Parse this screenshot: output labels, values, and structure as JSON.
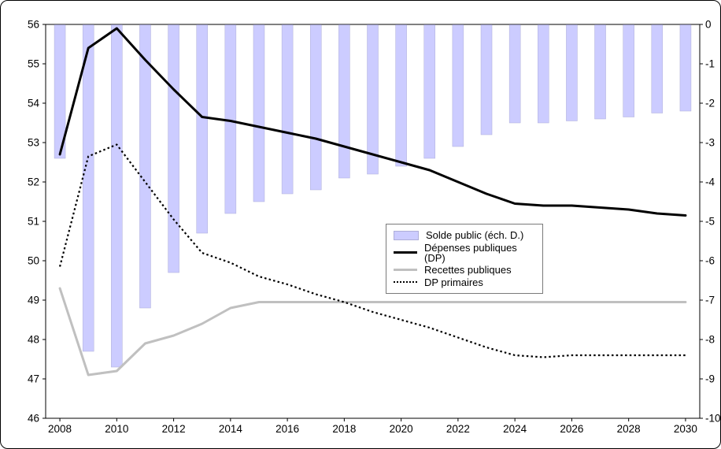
{
  "figure": {
    "background": "#FFFFFF",
    "frame_border_color": "#000000",
    "plot_border_color": "#000000",
    "legend_border_color": "#7A7A7A"
  },
  "chart_data": {
    "type": "combo-bar-line",
    "title": "",
    "xlabel": "",
    "ylabel_left": "",
    "ylabel_right": "",
    "grid": false,
    "legend_position": "inside-center-right",
    "years": [
      2008,
      2009,
      2010,
      2011,
      2012,
      2013,
      2014,
      2015,
      2016,
      2017,
      2018,
      2019,
      2020,
      2021,
      2022,
      2023,
      2024,
      2025,
      2026,
      2027,
      2028,
      2029,
      2030
    ],
    "x_tick_labels": [
      "2008",
      "2010",
      "2012",
      "2014",
      "2016",
      "2018",
      "2020",
      "2022",
      "2024",
      "2026",
      "2028",
      "2030"
    ],
    "x_tick_step": 2,
    "left_axis": {
      "min": 46,
      "max": 56,
      "step": 1,
      "tick_labels": [
        "56",
        "55",
        "54",
        "53",
        "52",
        "51",
        "50",
        "49",
        "48",
        "47",
        "46"
      ]
    },
    "right_axis": {
      "min": -10,
      "max": 0,
      "step": 1,
      "tick_labels": [
        "0",
        "-1",
        "-2",
        "-3",
        "-4",
        "-5",
        "-6",
        "-7",
        "-8",
        "-9",
        "-10"
      ]
    },
    "series": [
      {
        "name": "Solde public (éch. D.)",
        "type": "bar",
        "axis": "right",
        "color": "#CCCCFF",
        "border_color": "#AEAED8",
        "values": [
          -3.4,
          -8.3,
          -8.7,
          -7.2,
          -6.3,
          -5.3,
          -4.8,
          -4.5,
          -4.3,
          -4.2,
          -3.9,
          -3.8,
          -3.6,
          -3.4,
          -3.1,
          -2.8,
          -2.5,
          -2.5,
          -2.45,
          -2.4,
          -2.35,
          -2.25,
          -2.2
        ]
      },
      {
        "name": "Dépenses publiques (DP)",
        "type": "line",
        "axis": "left",
        "style": "solid",
        "color": "#000000",
        "values": [
          52.7,
          55.4,
          55.9,
          55.1,
          54.35,
          53.65,
          53.55,
          53.4,
          53.25,
          53.1,
          52.9,
          52.7,
          52.5,
          52.3,
          52.0,
          51.7,
          51.45,
          51.4,
          51.4,
          51.35,
          51.3,
          51.2,
          51.15
        ]
      },
      {
        "name": "Recettes publiques",
        "type": "line",
        "axis": "left",
        "style": "solid",
        "color": "#C0C0C0",
        "values": [
          49.3,
          47.1,
          47.2,
          47.9,
          48.1,
          48.4,
          48.8,
          48.95,
          48.95,
          48.95,
          48.95,
          48.95,
          48.95,
          48.95,
          48.95,
          48.95,
          48.95,
          48.95,
          48.95,
          48.95,
          48.95,
          48.95,
          48.95
        ]
      },
      {
        "name": "DP primaires",
        "type": "line",
        "axis": "left",
        "style": "dotted",
        "color": "#000000",
        "values": [
          49.85,
          52.65,
          52.95,
          52.0,
          51.05,
          50.2,
          49.95,
          49.6,
          49.4,
          49.15,
          48.95,
          48.7,
          48.5,
          48.3,
          48.05,
          47.8,
          47.6,
          47.55,
          47.6,
          47.6,
          47.6,
          47.6,
          47.6
        ]
      }
    ]
  }
}
